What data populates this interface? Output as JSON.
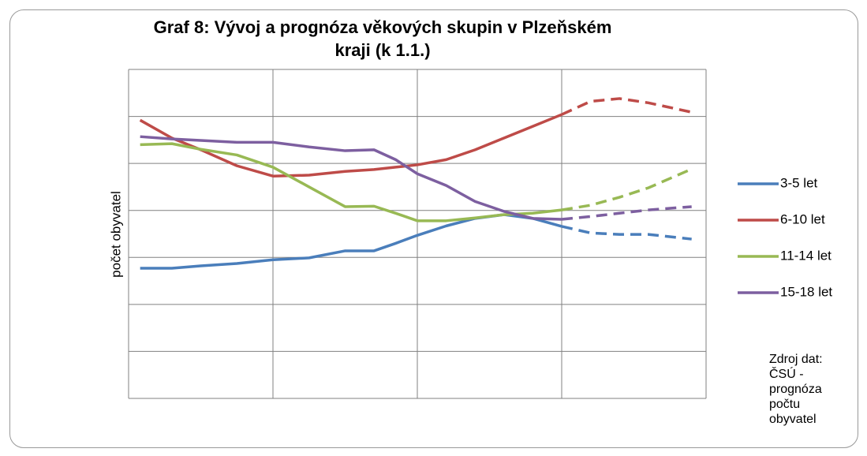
{
  "chart_data": {
    "type": "line",
    "title": "Graf 8: Vývoj a prognóza věkových skupin v Plzeňském kraji (k 1.1.)",
    "ylabel": "počet obyvatel",
    "source": "Zdroj dat: ČSÚ - prognóza počtu obyvatel",
    "xlim": [
      0,
      4
    ],
    "xticks": [
      0,
      1,
      2,
      3,
      4
    ],
    "ylim": [
      0,
      7
    ],
    "yticks": [
      0,
      1,
      2,
      3,
      4,
      5,
      6,
      7
    ],
    "grid": true,
    "legend": "right",
    "forecast_from": 3,
    "x": [
      0.08,
      0.3,
      0.5,
      0.75,
      1.0,
      1.25,
      1.5,
      1.7,
      1.85,
      2.0,
      2.2,
      2.4,
      2.6,
      2.8,
      3.0,
      3.2,
      3.4,
      3.6,
      3.9
    ],
    "series": [
      {
        "name": "3-5 let",
        "color": "#4a7ebb",
        "values": [
          2.77,
          2.77,
          2.82,
          2.87,
          2.95,
          2.99,
          3.14,
          3.14,
          3.3,
          3.47,
          3.67,
          3.83,
          3.91,
          3.83,
          3.66,
          3.52,
          3.49,
          3.49,
          3.39
        ]
      },
      {
        "name": "6-10 let",
        "color": "#be4b48",
        "values": [
          5.92,
          5.54,
          5.29,
          4.95,
          4.73,
          4.75,
          4.83,
          4.87,
          4.92,
          4.97,
          5.08,
          5.29,
          5.54,
          5.79,
          6.04,
          6.32,
          6.38,
          6.29,
          6.09
        ]
      },
      {
        "name": "11-14 let",
        "color": "#98b954",
        "values": [
          5.4,
          5.42,
          5.3,
          5.18,
          4.92,
          4.5,
          4.08,
          4.09,
          3.94,
          3.78,
          3.78,
          3.84,
          3.91,
          3.94,
          4.01,
          4.11,
          4.28,
          4.48,
          4.88
        ]
      },
      {
        "name": "15-18 let",
        "color": "#7d5fa0",
        "values": [
          5.57,
          5.52,
          5.49,
          5.45,
          5.45,
          5.35,
          5.27,
          5.29,
          5.08,
          4.78,
          4.53,
          4.19,
          3.98,
          3.83,
          3.81,
          3.87,
          3.94,
          4.01,
          4.08
        ]
      }
    ]
  }
}
